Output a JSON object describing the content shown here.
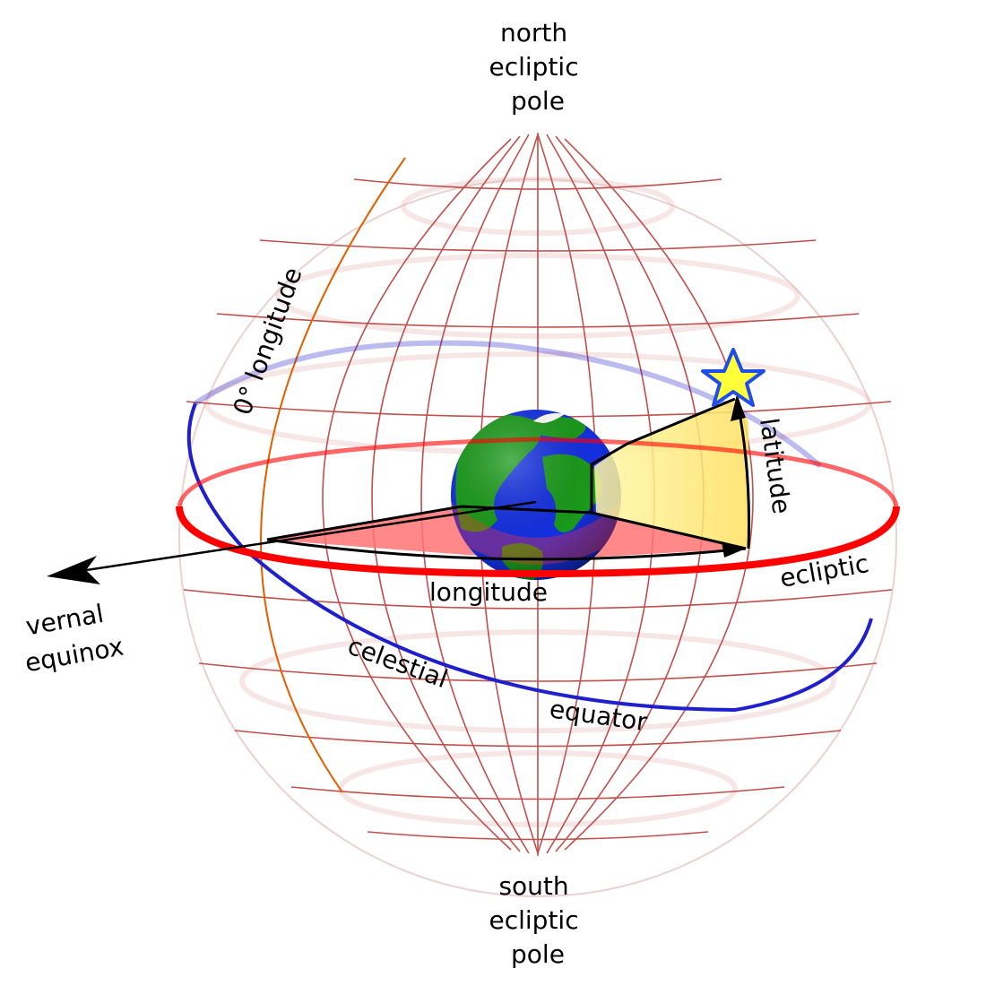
{
  "labels": {
    "north_pole": [
      "north",
      "ecliptic",
      "pole"
    ],
    "south_pole": [
      "south",
      "ecliptic",
      "pole"
    ],
    "vernal_equinox": [
      "vernal",
      "equinox"
    ],
    "zero_longitude": "0° longitude",
    "latitude": "latitude",
    "longitude": "longitude",
    "ecliptic": "ecliptic",
    "celestial": "celestial",
    "equator": "equator"
  },
  "colors": {
    "grid": "#c0504d",
    "grid_back": "#e8b8b8",
    "ecliptic": "#ff0000",
    "celestial_equator": "#1f1fcc",
    "longitude_wedge": "#ff7373",
    "latitude_wedge": "#fff59a",
    "earth_ocean": "#1430e0",
    "earth_land": "#1a9a1a",
    "star_fill": "#ffff3a",
    "star_stroke": "#1f4de8",
    "zero_meridian": "#e06000"
  },
  "icons": {
    "earth": "earth-globe-icon",
    "star": "star-icon"
  }
}
